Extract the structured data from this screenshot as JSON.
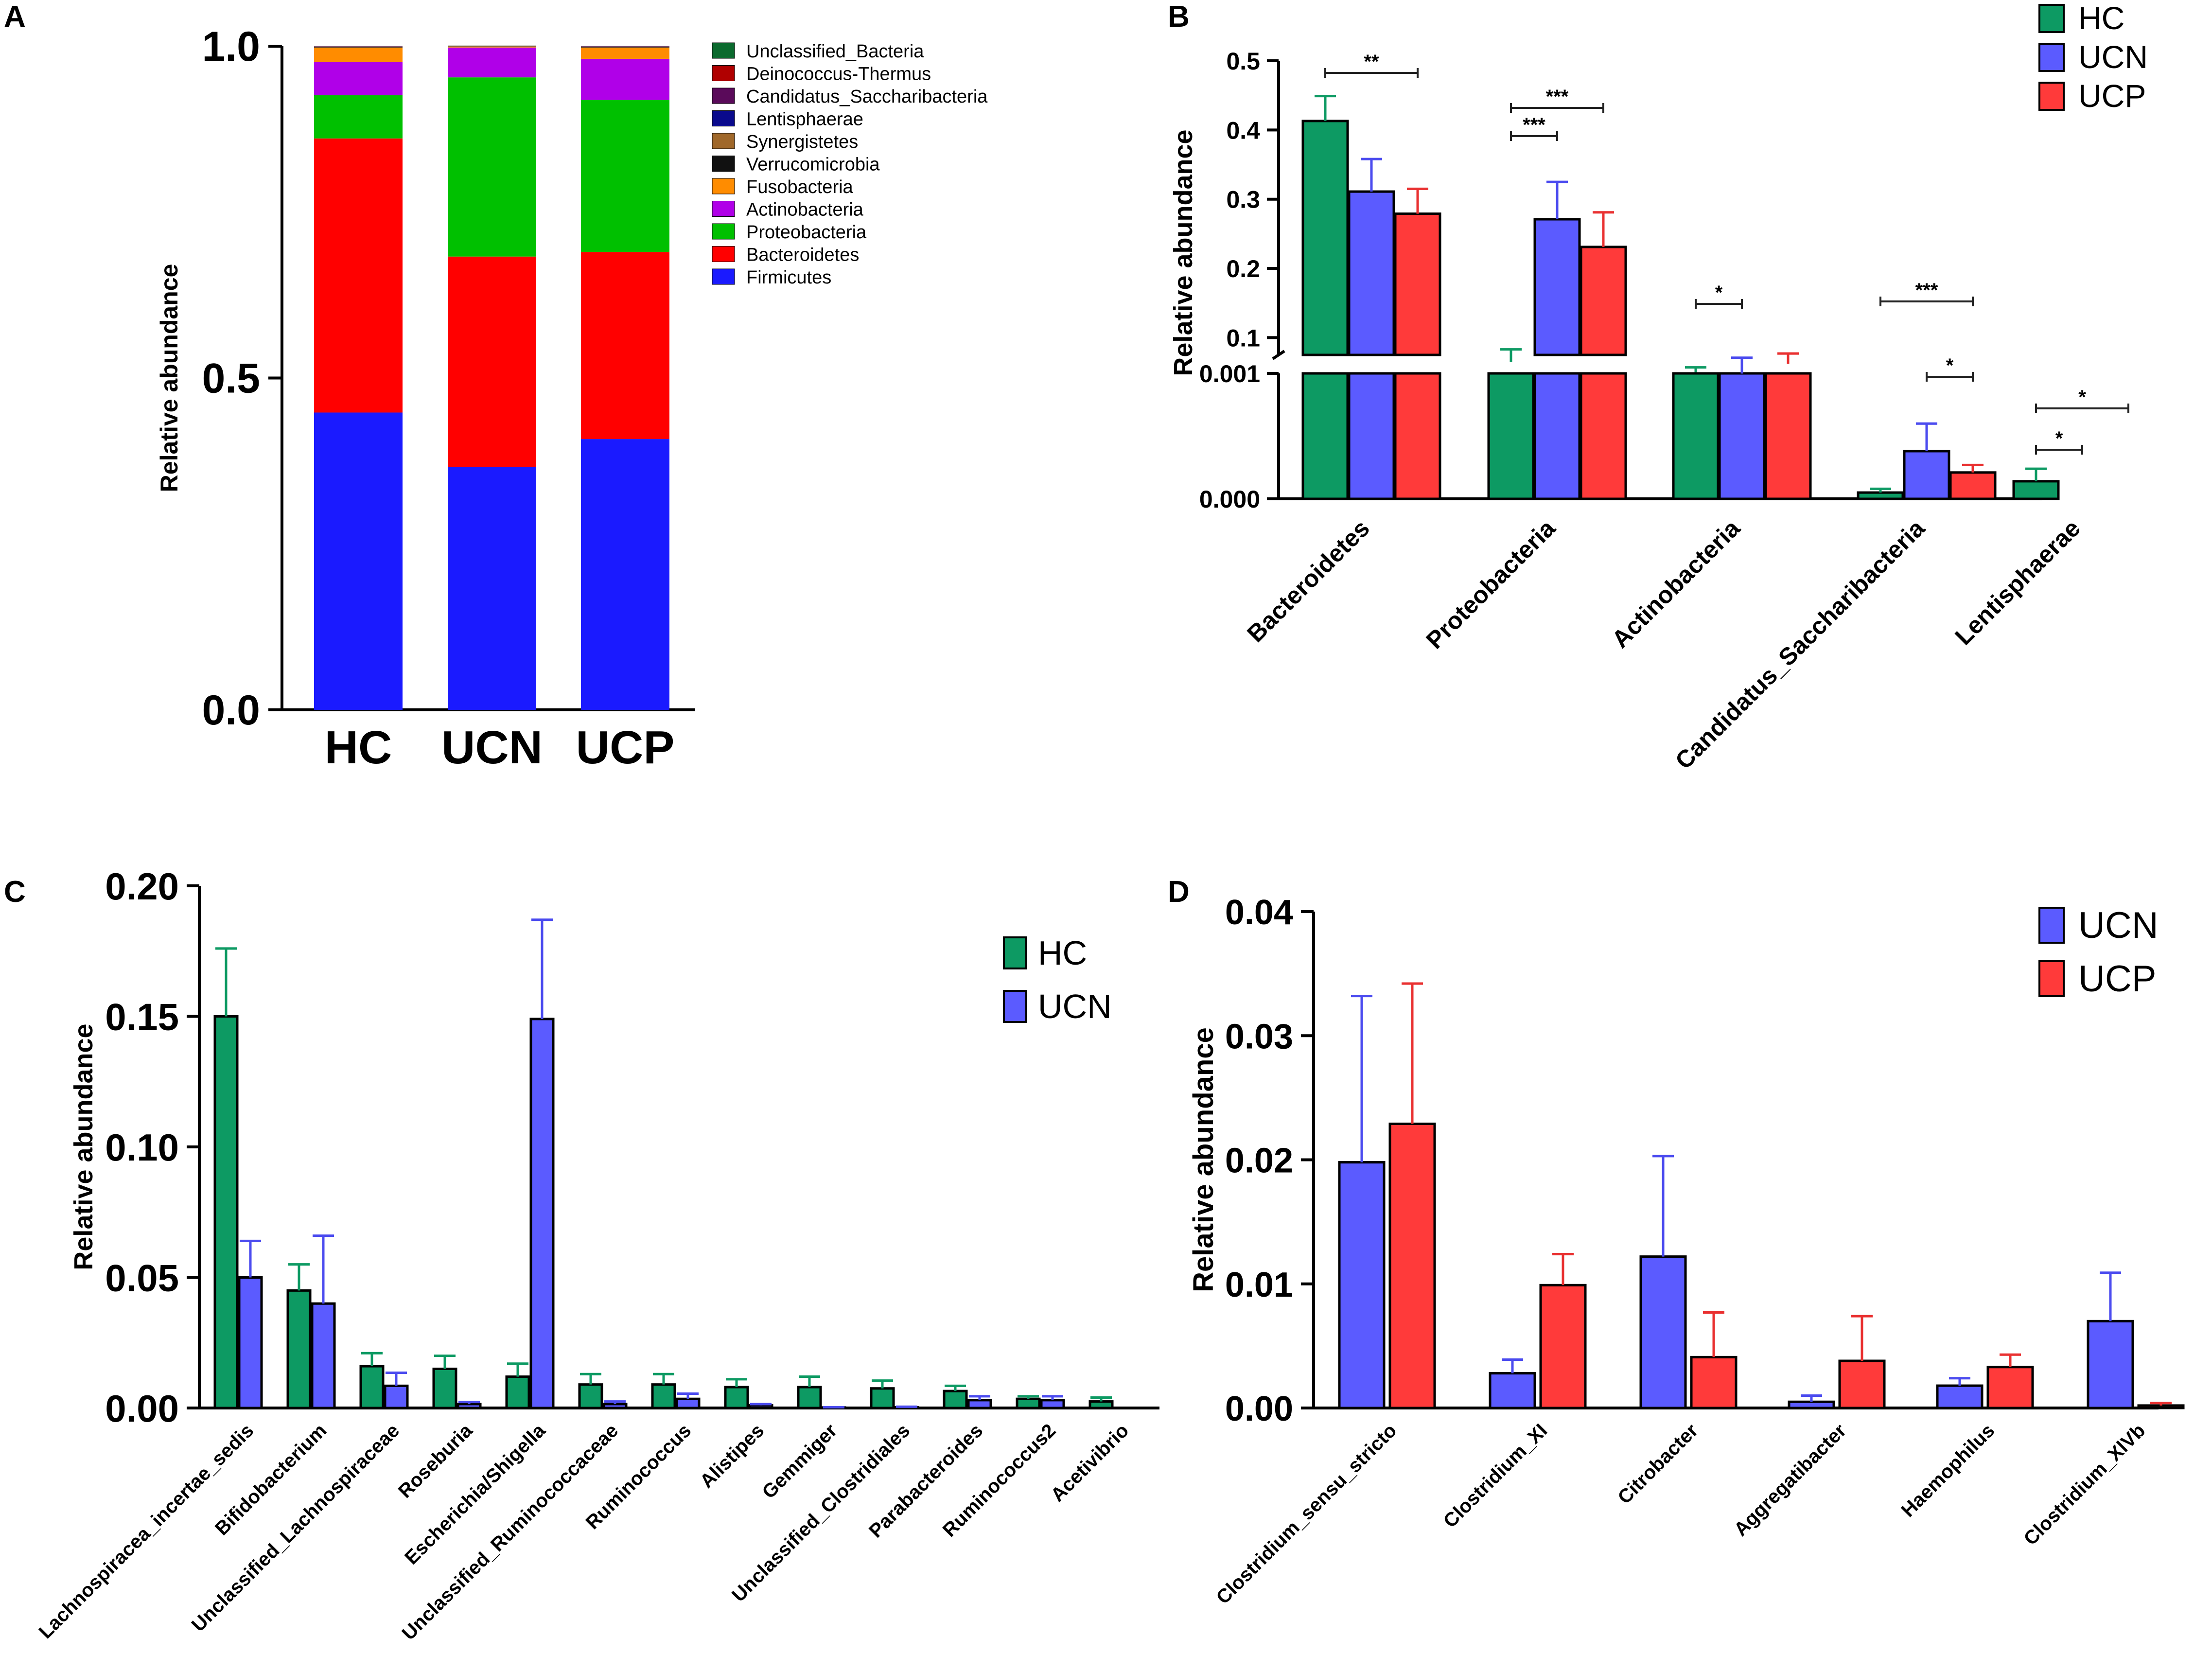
{
  "chart_data": [
    {
      "panel": "A",
      "type": "bar",
      "stacked": true,
      "ylabel": "Relative abundance",
      "ylim": [
        0,
        1
      ],
      "yticks": [
        "0.0",
        "0.5",
        "1.0"
      ],
      "categories": [
        "HC",
        "UCN",
        "UCP"
      ],
      "series": [
        {
          "name": "Firmicutes",
          "color": "#1a1aff",
          "values": [
            0.448,
            0.366,
            0.408
          ]
        },
        {
          "name": "Bacteroidetes",
          "color": "#ff0000",
          "values": [
            0.413,
            0.317,
            0.282
          ]
        },
        {
          "name": "Proteobacteria",
          "color": "#00c000",
          "values": [
            0.065,
            0.27,
            0.229
          ]
        },
        {
          "name": "Actinobacteria",
          "color": "#b000e8",
          "values": [
            0.05,
            0.045,
            0.062
          ]
        },
        {
          "name": "Fusobacteria",
          "color": "#ff8c00",
          "values": [
            0.022,
            0.001,
            0.017
          ]
        },
        {
          "name": "Verrucomicrobia",
          "color": "#111111",
          "values": [
            0.001,
            0.0005,
            0.001
          ]
        },
        {
          "name": "Synergistetes",
          "color": "#a0682a",
          "values": [
            0.0005,
            0.0005,
            0.0005
          ]
        },
        {
          "name": "Lentisphaerae",
          "color": "#0a0a8c",
          "values": [
            0.0003,
            0.0002,
            0.0002
          ]
        },
        {
          "name": "Candidatus_Saccharibacteria",
          "color": "#5a0a5a",
          "values": [
            0.0001,
            0.0004,
            0.0003
          ]
        },
        {
          "name": "Deinococcus-Thermus",
          "color": "#b00000",
          "values": [
            0.0002,
            0.0002,
            0.0002
          ]
        },
        {
          "name": "Unclassified_Bacteria",
          "color": "#0b6a2e",
          "values": [
            0.0001,
            0.0001,
            0.0001
          ]
        }
      ],
      "legend_order": [
        "Unclassified_Bacteria",
        "Deinococcus-Thermus",
        "Candidatus_Saccharibacteria",
        "Lentisphaerae",
        "Synergistetes",
        "Verrucomicrobia",
        "Fusobacteria",
        "Actinobacteria",
        "Proteobacteria",
        "Bacteroidetes",
        "Firmicutes"
      ],
      "legend_position": "top-right"
    },
    {
      "panel": "B",
      "type": "bar",
      "broken_axis": true,
      "ylabel": "Relative abundance",
      "upper_yticks": [
        "0.1",
        "0.2",
        "0.3",
        "0.4",
        "0.5"
      ],
      "lower_yticks": [
        "0.000",
        "0.001"
      ],
      "categories": [
        "Bacteroidetes",
        "Proteobacteria",
        "Actinobacteria",
        "Candidatus_Saccharibacteria",
        "Lentisphaerae"
      ],
      "series": [
        {
          "name": "HC",
          "color": "#0d9a63",
          "err_color": "#0d9a63",
          "values": [
            0.413,
            0.065,
            0.05,
            5e-05,
            0.00014
          ],
          "errors": [
            0.036,
            0.018,
            0.007,
            3e-05,
            0.0001
          ]
        },
        {
          "name": "UCN",
          "color": "#5b5bff",
          "err_color": "#4b4bef",
          "values": [
            0.311,
            0.271,
            0.048,
            0.00038,
            0.0
          ],
          "errors": [
            0.047,
            0.054,
            0.023,
            0.00022,
            0.0
          ]
        },
        {
          "name": "UCP",
          "color": "#ff3a3a",
          "err_color": "#e93030",
          "values": [
            0.279,
            0.231,
            0.062,
            0.00021,
            0.0
          ],
          "errors": [
            0.036,
            0.05,
            0.015,
            6e-05,
            0.0
          ]
        }
      ],
      "significance": [
        {
          "category": "Bacteroidetes",
          "label": "**",
          "from": "HC",
          "to": "UCP"
        },
        {
          "category": "Proteobacteria",
          "label": "***",
          "from": "HC",
          "to": "UCP"
        },
        {
          "category": "Proteobacteria",
          "label": "***",
          "from": "HC",
          "to": "UCN"
        },
        {
          "category": "Actinobacteria",
          "label": "*",
          "from": "HC",
          "to": "UCN"
        },
        {
          "category": "Candidatus_Saccharibacteria",
          "label": "***",
          "from": "HC",
          "to": "UCP"
        },
        {
          "category": "Candidatus_Saccharibacteria",
          "label": "*",
          "from": "UCN",
          "to": "UCP"
        },
        {
          "category": "Lentisphaerae",
          "label": "*",
          "from": "HC",
          "to": "UCP"
        },
        {
          "category": "Lentisphaerae",
          "label": "*",
          "from": "HC",
          "to": "UCN"
        }
      ],
      "legend_position": "top-right"
    },
    {
      "panel": "C",
      "type": "bar",
      "ylabel": "Relative abundance",
      "ylim": [
        0,
        0.2
      ],
      "yticks": [
        "0.00",
        "0.05",
        "0.10",
        "0.15",
        "0.20"
      ],
      "categories": [
        "Lachnospiracea_incertae_sedis",
        "Bifidobacterium",
        "Unclassified_Lachnospiraceae",
        "Roseburia",
        "Escherichia/Shigella",
        "Unclassified_Ruminococcaceae",
        "Ruminococcus",
        "Alistipes",
        "Gemmiger",
        "Unclassified_Clostridiales",
        "Parabacteroides",
        "Ruminococcus2",
        "Acetivibrio"
      ],
      "series": [
        {
          "name": "HC",
          "color": "#0d9a63",
          "err_color": "#0d9a63",
          "values": [
            0.15,
            0.045,
            0.016,
            0.015,
            0.012,
            0.009,
            0.009,
            0.008,
            0.008,
            0.0075,
            0.0065,
            0.0035,
            0.0025
          ],
          "errors": [
            0.026,
            0.01,
            0.005,
            0.005,
            0.005,
            0.004,
            0.004,
            0.003,
            0.004,
            0.003,
            0.002,
            0.001,
            0.0015
          ]
        },
        {
          "name": "UCN",
          "color": "#5b5bff",
          "err_color": "#4b4bef",
          "values": [
            0.05,
            0.04,
            0.0085,
            0.0015,
            0.149,
            0.0015,
            0.0035,
            0.001,
            0.0002,
            0.0003,
            0.003,
            0.003,
            0.0
          ],
          "errors": [
            0.014,
            0.026,
            0.005,
            0.0008,
            0.038,
            0.001,
            0.002,
            0.0005,
            0.0001,
            0.0002,
            0.0015,
            0.0015,
            0.0
          ]
        }
      ],
      "legend_position": "top-right"
    },
    {
      "panel": "D",
      "type": "bar",
      "ylabel": "Relative abundance",
      "ylim": [
        0,
        0.04
      ],
      "yticks": [
        "0.00",
        "0.01",
        "0.02",
        "0.03",
        "0.04"
      ],
      "categories": [
        "Clostridium_sensu_stricto",
        "Clostridium_XI",
        "Citrobacter",
        "Aggregatibacter",
        "Haemophilus",
        "Clostridium_XlVb"
      ],
      "series": [
        {
          "name": "UCN",
          "color": "#5b5bff",
          "err_color": "#4b4bef",
          "values": [
            0.0198,
            0.0028,
            0.0122,
            0.0005,
            0.0018,
            0.007
          ],
          "errors": [
            0.0134,
            0.0011,
            0.0081,
            0.0005,
            0.0006,
            0.0039
          ]
        },
        {
          "name": "UCP",
          "color": "#ff3a3a",
          "err_color": "#e93030",
          "values": [
            0.0229,
            0.0099,
            0.0041,
            0.0038,
            0.0033,
            0.0002
          ],
          "errors": [
            0.0113,
            0.0025,
            0.0036,
            0.0036,
            0.001,
            0.0002
          ]
        }
      ],
      "legend_position": "top-right"
    }
  ],
  "panel_letters": [
    "A",
    "B",
    "C",
    "D"
  ]
}
